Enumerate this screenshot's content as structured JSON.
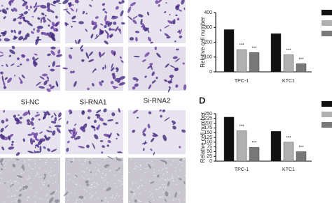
{
  "image_labels": [
    "Si-NC",
    "Si-RNA1",
    "Si-RNA2"
  ],
  "chart_data": [
    {
      "type": "bar",
      "y_label": "Relative cell number",
      "categories": [
        "TPC-1",
        "KTC1"
      ],
      "series": [
        {
          "color": "#111111",
          "values": [
            285,
            258
          ],
          "annotations": [
            null,
            null
          ]
        },
        {
          "color": "#b0b0b0",
          "values": [
            150,
            115
          ],
          "annotations": [
            "***",
            "***"
          ]
        },
        {
          "color": "#787878",
          "values": [
            130,
            55
          ],
          "annotations": [
            "***",
            "***"
          ]
        }
      ],
      "ylim": [
        0,
        400
      ],
      "yticks": [
        0,
        100,
        200,
        300,
        400
      ]
    },
    {
      "type": "bar",
      "panel_label": "D",
      "y_label": "Relative cell number",
      "categories": [
        "TPC-1",
        "KTC1"
      ],
      "series": [
        {
          "color": "#111111",
          "values": [
            232,
            157
          ],
          "annotations": [
            null,
            null
          ]
        },
        {
          "color": "#b0b0b0",
          "values": [
            160,
            100
          ],
          "annotations": [
            "***",
            "***"
          ]
        },
        {
          "color": "#787878",
          "values": [
            73,
            50
          ],
          "annotations": [
            "***",
            "***"
          ]
        }
      ],
      "ylim": [
        0,
        250
      ],
      "yticks": [
        0,
        25,
        50,
        75,
        100,
        125,
        150,
        175,
        200,
        225,
        250
      ]
    }
  ]
}
